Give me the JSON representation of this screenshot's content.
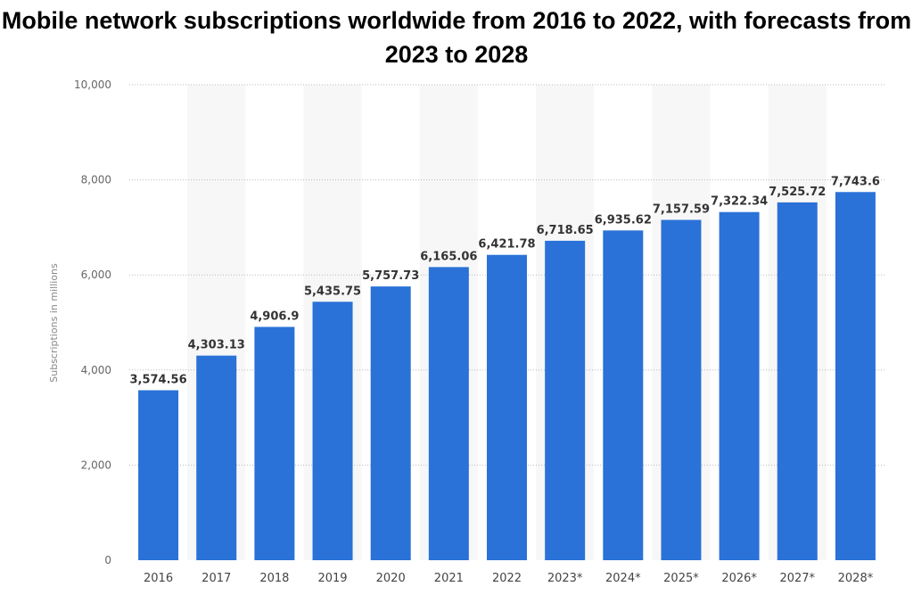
{
  "chart_data": {
    "type": "bar",
    "title": "Mobile network subscriptions worldwide from 2016 to 2022, with forecasts from 2023 to 2028",
    "xlabel": "",
    "ylabel": "Subscriptions in millions",
    "categories": [
      "2016",
      "2017",
      "2018",
      "2019",
      "2020",
      "2021",
      "2022",
      "2023*",
      "2024*",
      "2025*",
      "2026*",
      "2027*",
      "2028*"
    ],
    "values": [
      3574.56,
      4303.13,
      4906.9,
      5435.75,
      5757.73,
      6165.06,
      6421.78,
      6718.65,
      6935.62,
      7157.59,
      7322.34,
      7525.72,
      7743.6
    ],
    "data_labels": [
      "3,574.56",
      "4,303.13",
      "4,906.9",
      "5,435.75",
      "5,757.73",
      "6,165.06",
      "6,421.78",
      "6,718.65",
      "6,935.62",
      "7,157.59",
      "7,322.34",
      "7,525.72",
      "7,743.6"
    ],
    "ylim": [
      0,
      10000
    ],
    "yticks": [
      0,
      2000,
      4000,
      6000,
      8000,
      10000
    ],
    "ytick_labels": [
      "0",
      "2,000",
      "4,000",
      "6,000",
      "8,000",
      "10,000"
    ],
    "grid": true,
    "bar_color": "#2a72d8",
    "stripe_color": "#f7f7f7"
  }
}
